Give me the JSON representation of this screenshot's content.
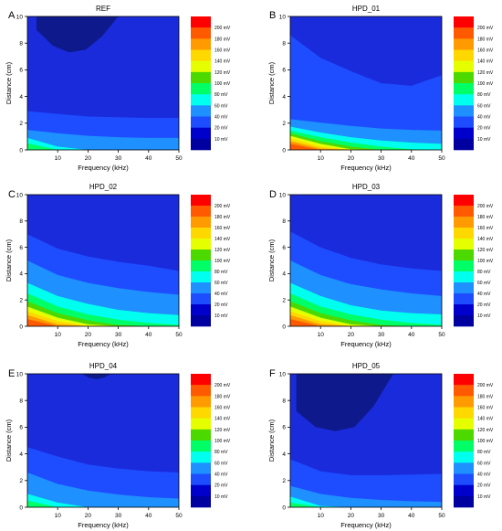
{
  "figure": {
    "colorbar_labels": [
      "200 mV",
      "180 mV",
      "160 mV",
      "140 mV",
      "120 mV",
      "100 mV",
      "80 mV",
      "60 mV",
      "40 mV",
      "20 mV",
      "10 mV"
    ],
    "colorbar_colors": [
      "#ff0000",
      "#ff5a00",
      "#ff9a00",
      "#ffd800",
      "#e6ff00",
      "#4cd900",
      "#00ff66",
      "#00ffee",
      "#1e90ff",
      "#1e4cff",
      "#0000cc",
      "#0000a0"
    ]
  },
  "chart_data": [
    {
      "panel_letter": "A",
      "title": "REF",
      "type": "heatmap",
      "xlabel": "Frequency (kHz)",
      "ylabel": "Distance (cm)",
      "xlim": [
        0,
        50
      ],
      "ylim": [
        0,
        10
      ],
      "xticks": [
        "10",
        "20",
        "30",
        "40",
        "50"
      ],
      "yticks": [
        "0",
        "2",
        "4",
        "6",
        "8",
        "10"
      ],
      "contour_levels_mV": [
        10,
        20,
        40,
        60,
        80,
        100,
        120,
        140,
        160,
        180,
        200
      ],
      "boundaries": [
        {
          "level": "20-40 mV",
          "y_at": [
            2.9,
            2.7,
            2.5,
            2.45,
            2.4,
            2.4
          ]
        },
        {
          "level": "40-60 mV",
          "y_at": [
            1.5,
            1.25,
            1.05,
            0.95,
            0.9,
            0.9
          ]
        },
        {
          "level": "60-80 mV",
          "y_at": [
            0.9,
            0.25,
            0.0,
            0.0,
            0.0,
            0.0
          ]
        },
        {
          "level": "80-100 mV",
          "y_at": [
            0.5,
            0.0,
            0.0,
            0.0,
            0.0,
            0.0
          ]
        }
      ],
      "low_region": {
        "x": [
          3,
          30
        ],
        "y_bottom": [
          9.0,
          7.8,
          7.3,
          7.5,
          8.5,
          10
        ]
      }
    },
    {
      "panel_letter": "B",
      "title": "HPD_01",
      "type": "heatmap",
      "xlabel": "Frequency (kHz)",
      "ylabel": "Distance (cm)",
      "xlim": [
        0,
        50
      ],
      "ylim": [
        0,
        10
      ],
      "xticks": [
        "10",
        "20",
        "30",
        "40",
        "50"
      ],
      "yticks": [
        "0",
        "2",
        "4",
        "6",
        "8",
        "10"
      ],
      "contour_levels_mV": [
        10,
        20,
        40,
        60,
        80,
        100,
        120,
        140,
        160,
        180,
        200
      ],
      "boundaries": [
        {
          "level": "20-40 mV",
          "y_at": [
            8.6,
            6.9,
            5.9,
            5.0,
            4.8,
            5.6
          ]
        },
        {
          "level": "40-60 mV",
          "y_at": [
            2.3,
            2.05,
            1.8,
            1.6,
            1.5,
            1.45
          ]
        },
        {
          "level": "60-80 mV",
          "y_at": [
            1.75,
            1.3,
            0.95,
            0.7,
            0.55,
            0.45
          ]
        },
        {
          "level": "80-100 mV",
          "y_at": [
            1.45,
            0.95,
            0.55,
            0.25,
            0.05,
            0.0
          ]
        },
        {
          "level": "100-120 mV",
          "y_at": [
            1.25,
            0.65,
            0.25,
            0.0,
            0.0,
            0.0
          ]
        },
        {
          "level": "120-140 mV",
          "y_at": [
            1.05,
            0.45,
            0.05,
            0.0,
            0.0,
            0.0
          ]
        },
        {
          "level": "140-160 mV",
          "y_at": [
            0.85,
            0.25,
            0.0,
            0.0,
            0.0,
            0.0
          ]
        },
        {
          "level": "160-180 mV",
          "y_at": [
            0.65,
            0.1,
            0.0,
            0.0,
            0.0,
            0.0
          ]
        },
        {
          "level": "180-200 mV",
          "y_at": [
            0.45,
            0.0,
            0.0,
            0.0,
            0.0,
            0.0
          ]
        }
      ]
    },
    {
      "panel_letter": "C",
      "title": "HPD_02",
      "type": "heatmap",
      "xlabel": "Frequency (kHz)",
      "ylabel": "Distance (cm)",
      "xlim": [
        0,
        50
      ],
      "ylim": [
        0,
        10
      ],
      "xticks": [
        "10",
        "20",
        "30",
        "40",
        "50"
      ],
      "yticks": [
        "0",
        "2",
        "4",
        "6",
        "8",
        "10"
      ],
      "contour_levels_mV": [
        10,
        20,
        40,
        60,
        80,
        100,
        120,
        140,
        160,
        180,
        200
      ],
      "boundaries": [
        {
          "level": "20-40 mV",
          "y_at": [
            7.0,
            5.9,
            5.3,
            4.9,
            4.6,
            4.2
          ]
        },
        {
          "level": "40-60 mV",
          "y_at": [
            5.0,
            3.9,
            3.3,
            2.9,
            2.6,
            2.4
          ]
        },
        {
          "level": "60-80 mV",
          "y_at": [
            3.3,
            2.3,
            1.7,
            1.25,
            1.0,
            0.85
          ]
        },
        {
          "level": "80-100 mV",
          "y_at": [
            2.5,
            1.5,
            0.9,
            0.5,
            0.25,
            0.1
          ]
        },
        {
          "level": "100-120 mV",
          "y_at": [
            1.9,
            1.0,
            0.45,
            0.1,
            0.0,
            0.0
          ]
        },
        {
          "level": "120-140 mV",
          "y_at": [
            1.5,
            0.65,
            0.15,
            0.0,
            0.0,
            0.0
          ]
        },
        {
          "level": "140-160 mV",
          "y_at": [
            1.15,
            0.4,
            0.0,
            0.0,
            0.0,
            0.0
          ]
        },
        {
          "level": "160-180 mV",
          "y_at": [
            0.85,
            0.15,
            0.0,
            0.0,
            0.0,
            0.0
          ]
        },
        {
          "level": "180-200 mV",
          "y_at": [
            0.55,
            0.0,
            0.0,
            0.0,
            0.0,
            0.0
          ]
        }
      ]
    },
    {
      "panel_letter": "D",
      "title": "HPD_03",
      "type": "heatmap",
      "xlabel": "Frequency (kHz)",
      "ylabel": "Distance (cm)",
      "xlim": [
        0,
        50
      ],
      "ylim": [
        0,
        10
      ],
      "xticks": [
        "10",
        "20",
        "30",
        "40",
        "50"
      ],
      "yticks": [
        "0",
        "2",
        "4",
        "6",
        "8",
        "10"
      ],
      "contour_levels_mV": [
        10,
        20,
        40,
        60,
        80,
        100,
        120,
        140,
        160,
        180,
        200
      ],
      "boundaries": [
        {
          "level": "20-40 mV",
          "y_at": [
            7.2,
            6.0,
            5.2,
            4.7,
            4.4,
            4.2
          ]
        },
        {
          "level": "40-60 mV",
          "y_at": [
            5.0,
            3.9,
            3.2,
            2.8,
            2.5,
            2.3
          ]
        },
        {
          "level": "60-80 mV",
          "y_at": [
            3.3,
            2.3,
            1.6,
            1.2,
            1.0,
            0.9
          ]
        },
        {
          "level": "80-100 mV",
          "y_at": [
            2.5,
            1.5,
            0.9,
            0.5,
            0.25,
            0.1
          ]
        },
        {
          "level": "100-120 mV",
          "y_at": [
            1.9,
            1.0,
            0.45,
            0.1,
            0.0,
            0.0
          ]
        },
        {
          "level": "120-140 mV",
          "y_at": [
            1.5,
            0.65,
            0.15,
            0.0,
            0.0,
            0.0
          ]
        },
        {
          "level": "140-160 mV",
          "y_at": [
            1.15,
            0.4,
            0.0,
            0.0,
            0.0,
            0.0
          ]
        },
        {
          "level": "160-180 mV",
          "y_at": [
            0.85,
            0.15,
            0.0,
            0.0,
            0.0,
            0.0
          ]
        },
        {
          "level": "180-200 mV",
          "y_at": [
            0.55,
            0.0,
            0.0,
            0.0,
            0.0,
            0.0
          ]
        }
      ]
    },
    {
      "panel_letter": "E",
      "title": "HPD_04",
      "type": "heatmap",
      "xlabel": "Frequency (kHz)",
      "ylabel": "Distance (cm)",
      "xlim": [
        0,
        50
      ],
      "ylim": [
        0,
        10
      ],
      "xticks": [
        "10",
        "20",
        "30",
        "40",
        "50"
      ],
      "yticks": [
        "0",
        "2",
        "4",
        "6",
        "8",
        "10"
      ],
      "contour_levels_mV": [
        10,
        20,
        40,
        60,
        80,
        100,
        120,
        140,
        160,
        180,
        200
      ],
      "boundaries": [
        {
          "level": "20-40 mV",
          "y_at": [
            4.5,
            3.8,
            3.2,
            2.9,
            2.7,
            2.6
          ]
        },
        {
          "level": "40-60 mV",
          "y_at": [
            2.6,
            1.75,
            1.25,
            0.95,
            0.75,
            0.65
          ]
        },
        {
          "level": "60-80 mV",
          "y_at": [
            1.0,
            0.35,
            0.0,
            0.0,
            0.0,
            0.0
          ]
        },
        {
          "level": "80-100 mV",
          "y_at": [
            0.5,
            0.0,
            0.0,
            0.0,
            0.0,
            0.0
          ]
        }
      ],
      "low_region": {
        "x": [
          18,
          30
        ],
        "y_bottom": [
          10,
          9.7,
          9.6,
          9.7,
          10,
          10
        ]
      }
    },
    {
      "panel_letter": "F",
      "title": "HPD_05",
      "type": "heatmap",
      "xlabel": "Frequency (kHz)",
      "ylabel": "Distance (cm)",
      "xlim": [
        0,
        50
      ],
      "ylim": [
        0,
        10
      ],
      "xticks": [
        "10",
        "20",
        "30",
        "40",
        "50"
      ],
      "yticks": [
        "0",
        "2",
        "4",
        "6",
        "8",
        "10"
      ],
      "contour_levels_mV": [
        10,
        20,
        40,
        60,
        80,
        100,
        120,
        140,
        160,
        180,
        200
      ],
      "boundaries": [
        {
          "level": "20-40 mV",
          "y_at": [
            3.6,
            2.7,
            2.4,
            2.4,
            2.45,
            2.5
          ]
        },
        {
          "level": "40-60 mV",
          "y_at": [
            1.6,
            1.0,
            0.7,
            0.55,
            0.45,
            0.4
          ]
        },
        {
          "level": "60-80 mV",
          "y_at": [
            0.8,
            0.1,
            0.0,
            0.0,
            0.0,
            0.0
          ]
        },
        {
          "level": "80-100 mV",
          "y_at": [
            0.35,
            0.0,
            0.0,
            0.0,
            0.0,
            0.0
          ]
        }
      ],
      "low_region": {
        "x": [
          2,
          34
        ],
        "y_bottom": [
          7.2,
          6.0,
          5.7,
          6.0,
          7.6,
          10
        ]
      }
    }
  ]
}
